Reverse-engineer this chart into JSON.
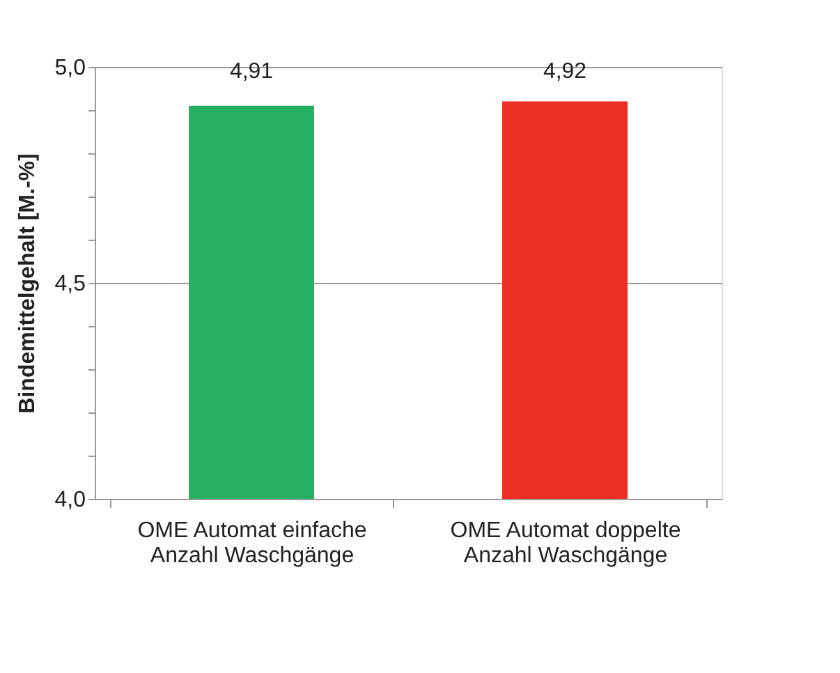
{
  "chart_data": {
    "type": "bar",
    "ylabel": "Bindemittelgehalt [M.-%]",
    "categories": [
      "OME Automat einfache Anzahl Waschgänge",
      "OME Automat doppelte Anzahl Waschgänge"
    ],
    "values": [
      4.91,
      4.92
    ],
    "colors": [
      "#26b062",
      "#ec3023"
    ],
    "value_labels": [
      "4,91",
      "4,92"
    ],
    "ylim": [
      4.0,
      5.0
    ],
    "yticks": [
      {
        "value": 4.0,
        "label": "4,0"
      },
      {
        "value": 4.1,
        "label": null
      },
      {
        "value": 4.2,
        "label": null
      },
      {
        "value": 4.3,
        "label": null
      },
      {
        "value": 4.4,
        "label": null
      },
      {
        "value": 4.5,
        "label": "4,5"
      },
      {
        "value": 4.6,
        "label": null
      },
      {
        "value": 4.7,
        "label": null
      },
      {
        "value": 4.8,
        "label": null
      },
      {
        "value": 4.9,
        "label": null
      },
      {
        "value": 5.0,
        "label": "5,0"
      }
    ],
    "grid": "y"
  }
}
